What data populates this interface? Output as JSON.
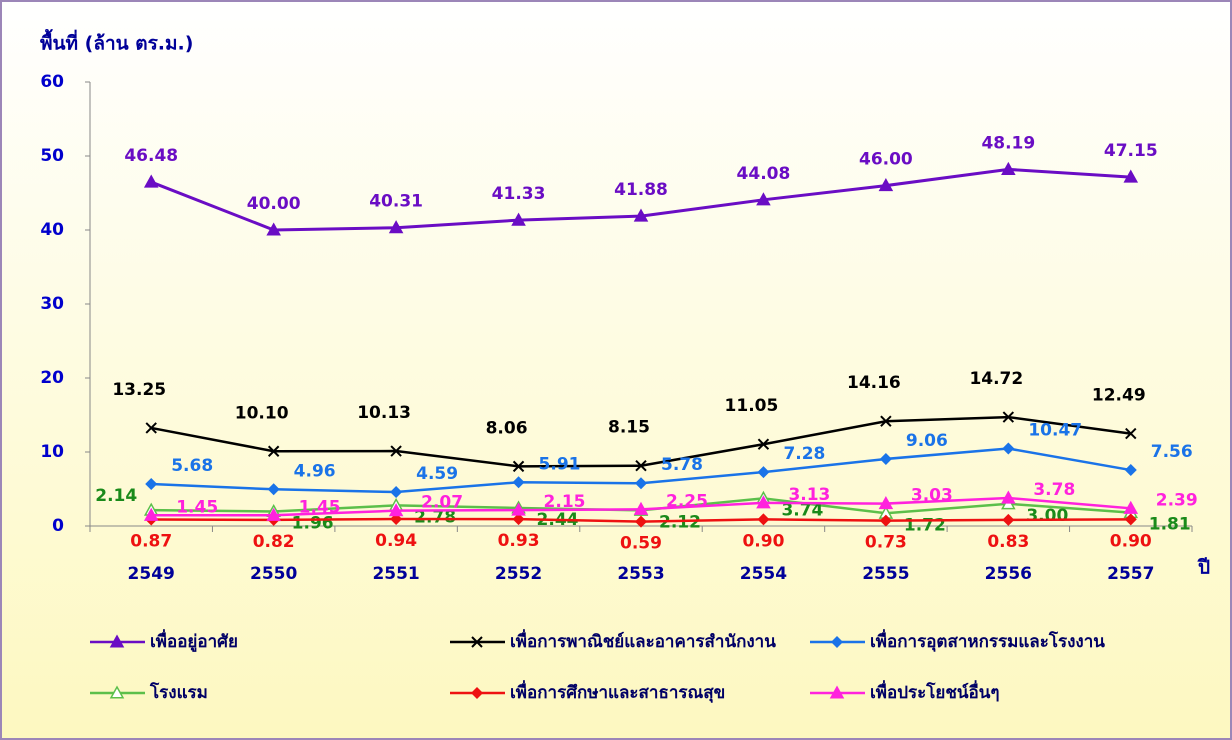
{
  "chart_data": {
    "type": "line",
    "ylabel": "พื้นที่ (ล้าน ตร.ม.)",
    "xlabel": "ปี",
    "categories": [
      "2549",
      "2550",
      "2551",
      "2552",
      "2553",
      "2554",
      "2555",
      "2556",
      "2557"
    ],
    "ylim": [
      0,
      60
    ],
    "yticks": [
      0,
      10,
      20,
      30,
      40,
      50,
      60
    ],
    "grid": false,
    "series": [
      {
        "name": "เพื่ออยู่อาศัย",
        "color": "#6a0dc4",
        "marker": "triangle",
        "values": [
          46.48,
          40,
          40.31,
          41.33,
          41.88,
          44.08,
          46,
          48.19,
          47.15
        ],
        "value_labels": [
          "46.48",
          "40.00",
          "40.31",
          "41.33",
          "41.88",
          "44.08",
          "46.00",
          "48.19",
          "47.15"
        ]
      },
      {
        "name": "เพื่อการพาณิชย์และอาคารสำนักงาน",
        "color": "#000000",
        "marker": "x",
        "values": [
          13.25,
          10.1,
          10.13,
          8.06,
          8.15,
          11.05,
          14.16,
          14.72,
          12.49
        ],
        "value_labels": [
          "13.25",
          "10.10",
          "10.13",
          "8.06",
          "8.15",
          "11.05",
          "14.16",
          "14.72",
          "12.49"
        ]
      },
      {
        "name": "เพื่อการอุตสาหกรรมและโรงงาน",
        "color": "#1a73e8",
        "marker": "diamond",
        "values": [
          5.68,
          4.96,
          4.59,
          5.91,
          5.78,
          7.28,
          9.06,
          10.47,
          7.56
        ],
        "value_labels": [
          "5.68",
          "4.96",
          "4.59",
          "5.91",
          "5.78",
          "7.28",
          "9.06",
          "10.47",
          "7.56"
        ]
      },
      {
        "name": "โรงแรม",
        "color": "#5cbf4a",
        "marker": "hollow-triangle",
        "values": [
          2.14,
          1.96,
          2.78,
          2.44,
          2.12,
          3.74,
          1.72,
          3,
          1.81
        ],
        "value_labels": [
          "2.14",
          "1.96",
          "2.78",
          "2.44",
          "2.12",
          "3.74",
          "1.72",
          "3.00",
          "1.81"
        ]
      },
      {
        "name": "เพื่อการศึกษาและสาธารณสุข",
        "color": "#ee1111",
        "marker": "diamond",
        "values": [
          0.87,
          0.82,
          0.94,
          0.93,
          0.59,
          0.9,
          0.73,
          0.83,
          0.9
        ],
        "value_labels": [
          "0.87",
          "0.82",
          "0.94",
          "0.93",
          "0.59",
          "0.90",
          "0.73",
          "0.83",
          "0.90"
        ]
      },
      {
        "name": "เพื่อประโยชน์อื่นๆ",
        "color": "#ff22dd",
        "marker": "triangle",
        "values": [
          1.45,
          1.45,
          2.07,
          2.15,
          2.25,
          3.13,
          3.03,
          3.78,
          2.39
        ],
        "value_labels": [
          "1.45",
          "1.45",
          "2.07",
          "2.15",
          "2.25",
          "3.13",
          "3.03",
          "3.78",
          "2.39"
        ]
      }
    ]
  }
}
